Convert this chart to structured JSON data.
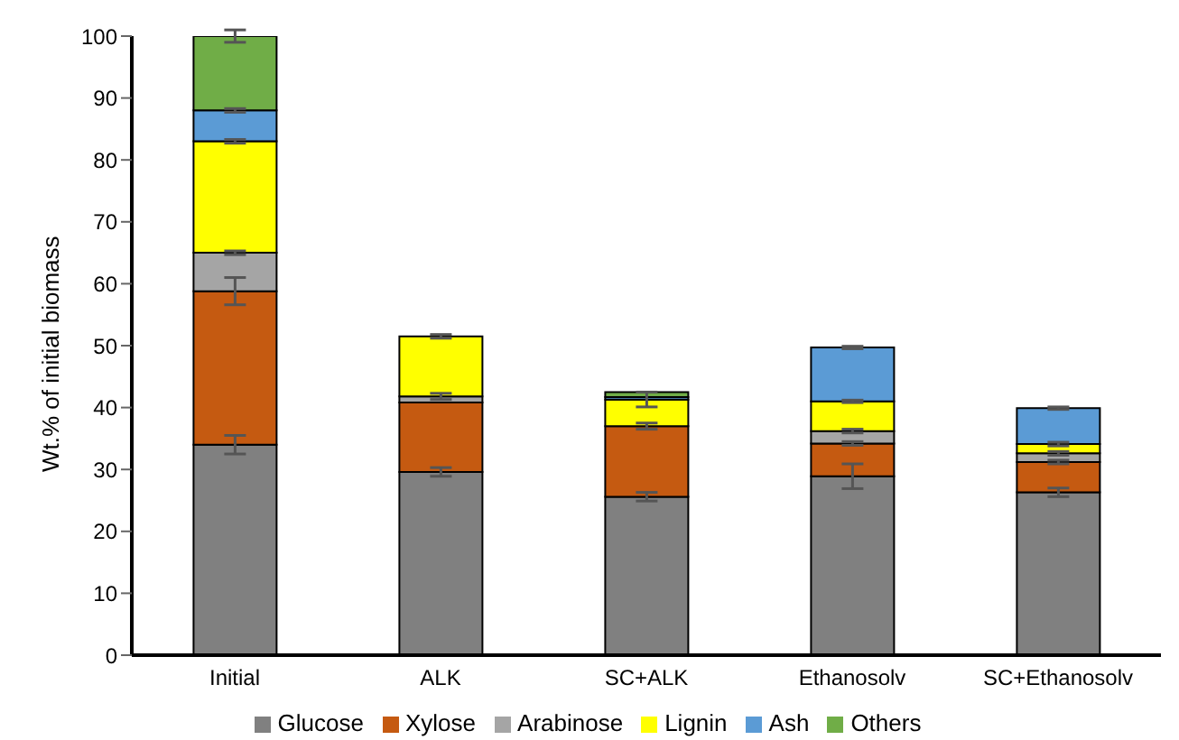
{
  "chart_data": {
    "type": "bar",
    "stacked": true,
    "ylabel": "Wt.% of initial biomass",
    "categories": [
      "Initial",
      "ALK",
      "SC+ALK",
      "Ethanosolv",
      "SC+Ethanosolv"
    ],
    "series": [
      {
        "name": "Glucose",
        "color": "#808080",
        "values": [
          34,
          29.6,
          25.6,
          28.9,
          26.3
        ],
        "errors": [
          1.5,
          0.7,
          0.7,
          2,
          0.7
        ]
      },
      {
        "name": "Xylose",
        "color": "#c55a11",
        "values": [
          24.8,
          11.2,
          11.4,
          5.3,
          4.9
        ],
        "errors": [
          2.2,
          null,
          0.5,
          0.3,
          0.3
        ]
      },
      {
        "name": "Arabinose",
        "color": "#a5a5a5",
        "values": [
          6.2,
          1,
          null,
          2,
          1.4
        ],
        "errors": [
          0.3,
          0.5,
          null,
          0.3,
          0.3
        ]
      },
      {
        "name": "Lignin",
        "color": "#ffff00",
        "values": [
          18,
          9.7,
          4.3,
          4.8,
          1.5
        ],
        "errors": [
          0.3,
          0.3,
          1.2,
          0.2,
          0.3
        ]
      },
      {
        "name": "Ash",
        "color": "#5b9bd5",
        "values": [
          5,
          0,
          0.4,
          8.7,
          5.8
        ],
        "errors": [
          0.3,
          null,
          null,
          0.2,
          0.2
        ]
      },
      {
        "name": "Others",
        "color": "#70ad47",
        "values": [
          12,
          0,
          0.8,
          0,
          0
        ],
        "errors": [
          1,
          null,
          null,
          null,
          null
        ]
      }
    ],
    "ylim": [
      0,
      100
    ],
    "yticks": [
      0,
      10,
      20,
      30,
      40,
      50,
      60,
      70,
      80,
      90,
      100
    ],
    "legend": "bottom"
  }
}
